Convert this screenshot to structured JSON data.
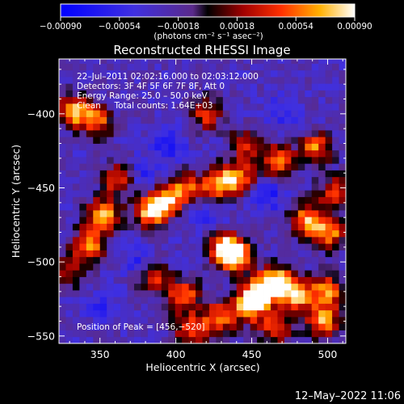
{
  "chart_data": {
    "type": "heatmap",
    "title": "Reconstructed RHESSI Image",
    "xlabel": "Heliocentric X (arcsec)",
    "ylabel": "Heliocentric Y (arcsec)",
    "xlim": [
      323,
      512
    ],
    "ylim": [
      -555,
      -363
    ],
    "x_ticks": [
      350,
      400,
      450,
      500
    ],
    "x_tick_labels": [
      "350",
      "400",
      "450",
      "500"
    ],
    "y_ticks": [
      -400,
      -450,
      -500,
      -550
    ],
    "y_tick_labels": [
      "−400",
      "−450",
      "−500",
      "−550"
    ],
    "colorbar": {
      "min": -0.0009,
      "max": 0.0009,
      "ticks": [
        -0.0009,
        -0.00054,
        -0.00018,
        0.00018,
        0.00054,
        0.0009
      ],
      "tick_labels": [
        "−0.00090",
        "−0.00054",
        "−0.00018",
        "0.00018",
        "0.00054",
        "0.00090"
      ],
      "units_label": "(photons cm⁻² s⁻¹ asec⁻²)"
    },
    "annotations": [
      "22–Jul–2011 02:02:16.000 to 02:03:12.000",
      "Detectors: 3F 4F 5F 6F 7F 8F, Att 0",
      "Energy Range: 25.0 – 50.0 keV",
      "Clean     Total counts: 1.64E+03"
    ],
    "peak_label": "Position of Peak = [456,−520]",
    "peak": [
      456,
      -520
    ],
    "bright_regions": [
      {
        "x": 333,
        "y": -398,
        "level": 0.8
      },
      {
        "x": 348,
        "y": -405,
        "level": 0.65
      },
      {
        "x": 352,
        "y": -468,
        "level": 0.85
      },
      {
        "x": 343,
        "y": -488,
        "level": 0.75
      },
      {
        "x": 362,
        "y": -444,
        "level": 0.6
      },
      {
        "x": 383,
        "y": -466,
        "level": 0.85
      },
      {
        "x": 394,
        "y": -458,
        "level": 0.75
      },
      {
        "x": 407,
        "y": -450,
        "level": 0.6
      },
      {
        "x": 428,
        "y": -447,
        "level": 0.8
      },
      {
        "x": 442,
        "y": -443,
        "level": 0.7
      },
      {
        "x": 447,
        "y": -420,
        "level": 0.55
      },
      {
        "x": 467,
        "y": -432,
        "level": 0.7
      },
      {
        "x": 492,
        "y": -423,
        "level": 0.7
      },
      {
        "x": 420,
        "y": -400,
        "level": 0.55
      },
      {
        "x": 505,
        "y": -453,
        "level": 0.6
      },
      {
        "x": 487,
        "y": -472,
        "level": 0.85
      },
      {
        "x": 502,
        "y": -480,
        "level": 0.7
      },
      {
        "x": 432,
        "y": -490,
        "level": 0.85
      },
      {
        "x": 440,
        "y": -496,
        "level": 0.9
      },
      {
        "x": 456,
        "y": -520,
        "level": 1.0
      },
      {
        "x": 468,
        "y": -513,
        "level": 0.9
      },
      {
        "x": 480,
        "y": -522,
        "level": 0.85
      },
      {
        "x": 448,
        "y": -530,
        "level": 0.85
      },
      {
        "x": 500,
        "y": -520,
        "level": 0.75
      },
      {
        "x": 497,
        "y": -540,
        "level": 0.8
      },
      {
        "x": 405,
        "y": -522,
        "level": 0.7
      },
      {
        "x": 410,
        "y": -545,
        "level": 0.65
      },
      {
        "x": 428,
        "y": -538,
        "level": 0.7
      },
      {
        "x": 385,
        "y": -510,
        "level": 0.55
      },
      {
        "x": 465,
        "y": -545,
        "level": 0.6
      },
      {
        "x": 330,
        "y": -505,
        "level": 0.45
      }
    ],
    "dark_regions": [
      {
        "x": 395,
        "y": -420,
        "level": -0.7
      },
      {
        "x": 380,
        "y": -440,
        "level": -0.6
      },
      {
        "x": 460,
        "y": -455,
        "level": -0.75
      },
      {
        "x": 375,
        "y": -500,
        "level": -0.6
      },
      {
        "x": 420,
        "y": -470,
        "level": -0.55
      },
      {
        "x": 350,
        "y": -530,
        "level": -0.5
      },
      {
        "x": 470,
        "y": -400,
        "level": -0.5
      }
    ]
  },
  "footer": {
    "date": "12–May–2022 11:06"
  }
}
